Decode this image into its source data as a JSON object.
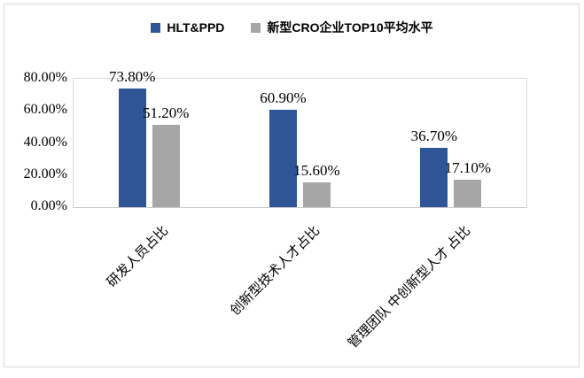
{
  "chart": {
    "background": "#FFFFFF",
    "frame_border_color": "#D9D9D9",
    "plot_border_color": "#D9D9D9"
  },
  "chart_data": {
    "type": "bar",
    "title": "",
    "xlabel": "",
    "ylabel": "",
    "grid": false,
    "legend": {
      "position": "top"
    },
    "categories": [
      "研发人员占比",
      "创新型技术人才占比",
      "管理团队 中创新型人才 占比"
    ],
    "series": [
      {
        "name": "HLT&PPD",
        "color": "#2F5597",
        "values": [
          73.8,
          60.9,
          36.7
        ],
        "value_labels": [
          "73.80%",
          "60.90%",
          "36.70%"
        ]
      },
      {
        "name": "新型CRO企业TOP10平均水平",
        "color": "#A6A6A6",
        "values": [
          51.2,
          15.6,
          17.1
        ],
        "value_labels": [
          "51.20%",
          "15.60%",
          "17.10%"
        ]
      }
    ],
    "y_axis": {
      "min": 0,
      "max": 80,
      "tick_values": [
        0,
        20,
        40,
        60,
        80
      ],
      "tick_labels": [
        "0.00%",
        "20.00%",
        "40.00%",
        "60.00%",
        "80.00%"
      ]
    }
  }
}
